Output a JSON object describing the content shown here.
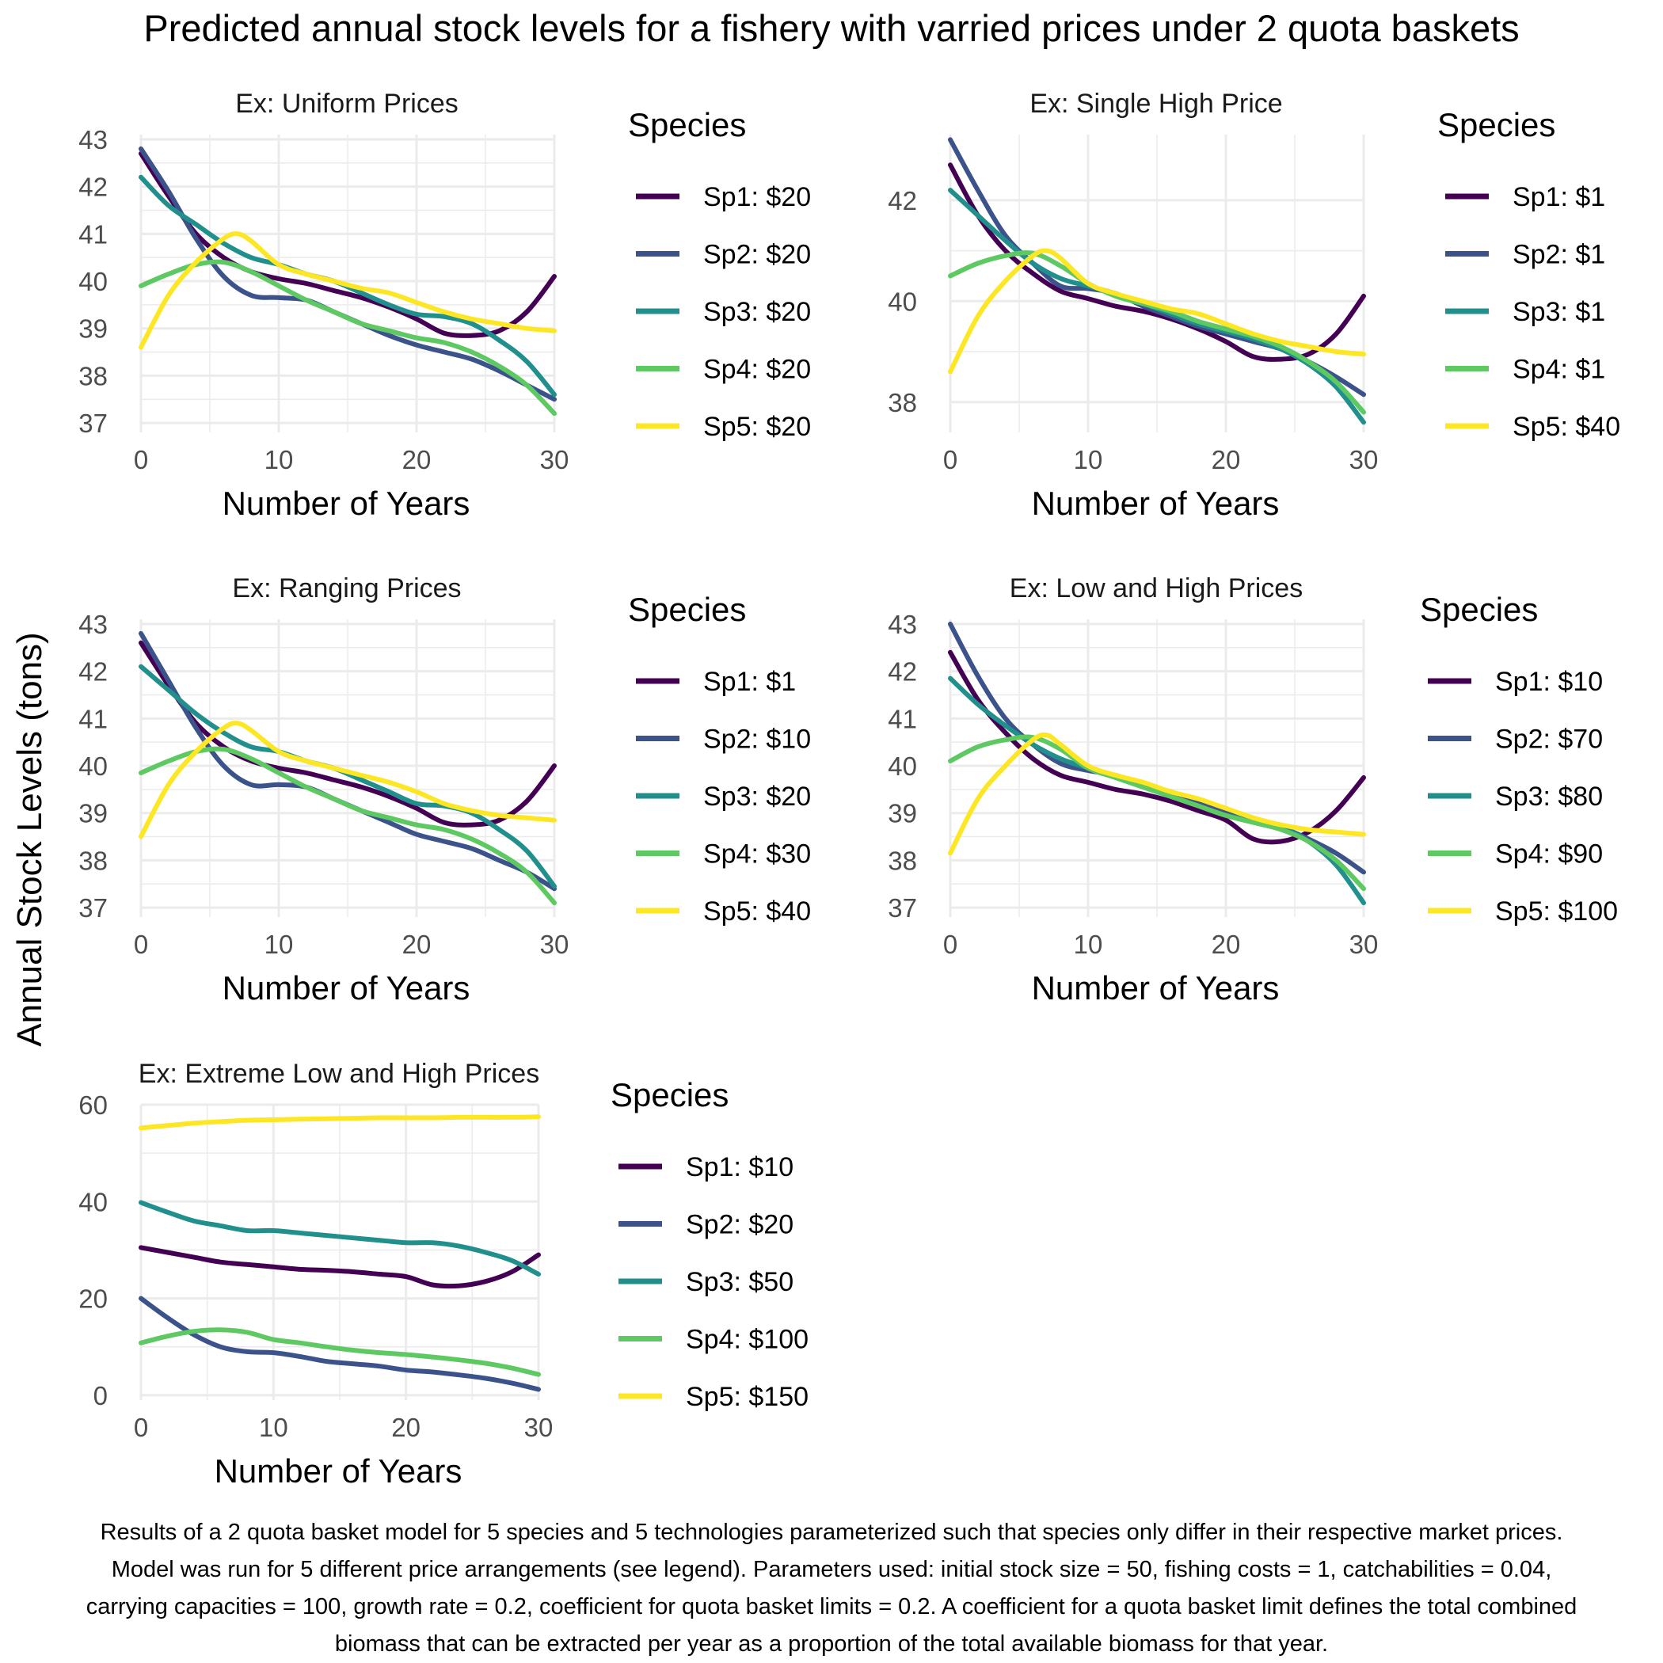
{
  "figure": {
    "title": "Predicted annual stock levels for a fishery with varried prices under 2 quota baskets",
    "y_axis_label": "Annual Stock Levels (tons)",
    "caption": "Results of a 2 quota basket model for 5 species and 5 technologies parameterized such that species only differ in their respective market prices. Model was run for 5 different price arrangements (see legend). Parameters used: initial stock size = 50, fishing costs = 1, catchabilities = 0.04, carrying capacities = 100, growth rate = 0.2, coefficient for quota basket limits = 0.2. A coefficient for a quota basket limit defines the total combined biomass that can be extracted per year as a proportion of the total available biomass for that year."
  },
  "colors": {
    "Sp1": "#440154",
    "Sp2": "#3b528b",
    "Sp3": "#21908c",
    "Sp4": "#5ec962",
    "Sp5": "#fde725",
    "grid": "#ebebeb",
    "text": "#1a1a1a",
    "tick_text": "#4d4d4d"
  },
  "chart_data": [
    {
      "type": "line",
      "title": "Ex: Uniform Prices",
      "xlabel": "Number of Years",
      "ylabel": "",
      "xlim": [
        0,
        30
      ],
      "ylim": [
        36.8,
        43.1
      ],
      "xticks": [
        0,
        10,
        20,
        30
      ],
      "yticks": [
        37,
        38,
        39,
        40,
        41,
        42,
        43
      ],
      "grid": true,
      "legend_title": "Species",
      "legend_position": "right",
      "series": [
        {
          "name": "Sp1: $20",
          "x": [
            0,
            2,
            4,
            6,
            8,
            10,
            12,
            14,
            16,
            18,
            20,
            22,
            24,
            26,
            28,
            30
          ],
          "y": [
            42.7,
            41.8,
            41.0,
            40.5,
            40.2,
            40.05,
            39.95,
            39.8,
            39.65,
            39.45,
            39.2,
            38.9,
            38.85,
            38.95,
            39.35,
            40.1
          ]
        },
        {
          "name": "Sp2: $20",
          "x": [
            0,
            2,
            4,
            6,
            8,
            10,
            12,
            14,
            16,
            18,
            20,
            22,
            24,
            26,
            28,
            30
          ],
          "y": [
            42.8,
            41.9,
            40.9,
            40.1,
            39.7,
            39.65,
            39.6,
            39.35,
            39.1,
            38.85,
            38.65,
            38.5,
            38.35,
            38.1,
            37.8,
            37.5
          ]
        },
        {
          "name": "Sp3: $20",
          "x": [
            0,
            2,
            4,
            6,
            8,
            10,
            12,
            14,
            16,
            18,
            20,
            22,
            24,
            26,
            28,
            30
          ],
          "y": [
            42.2,
            41.6,
            41.2,
            40.8,
            40.5,
            40.35,
            40.15,
            40.0,
            39.75,
            39.5,
            39.3,
            39.25,
            39.1,
            38.75,
            38.3,
            37.6
          ]
        },
        {
          "name": "Sp4: $20",
          "x": [
            0,
            2,
            4,
            6,
            8,
            10,
            12,
            14,
            16,
            18,
            20,
            22,
            24,
            26,
            28,
            30
          ],
          "y": [
            39.9,
            40.15,
            40.35,
            40.4,
            40.2,
            39.9,
            39.6,
            39.35,
            39.1,
            38.95,
            38.8,
            38.7,
            38.5,
            38.2,
            37.8,
            37.2
          ]
        },
        {
          "name": "Sp5: $20",
          "x": [
            0,
            2,
            4,
            6,
            7,
            8,
            10,
            12,
            14,
            16,
            18,
            20,
            22,
            24,
            26,
            28,
            30
          ],
          "y": [
            38.6,
            39.7,
            40.4,
            40.9,
            41.0,
            40.85,
            40.35,
            40.15,
            40.0,
            39.85,
            39.75,
            39.55,
            39.35,
            39.2,
            39.1,
            39.0,
            38.95
          ]
        }
      ]
    },
    {
      "type": "line",
      "title": "Ex: Single High Price",
      "xlabel": "Number of Years",
      "ylabel": "",
      "xlim": [
        0,
        30
      ],
      "ylim": [
        37.4,
        43.3
      ],
      "xticks": [
        0,
        10,
        20,
        30
      ],
      "yticks": [
        38,
        40,
        42
      ],
      "grid": true,
      "legend_title": "Species",
      "legend_position": "right",
      "series": [
        {
          "name": "Sp1: $1",
          "x": [
            0,
            2,
            4,
            6,
            8,
            10,
            12,
            14,
            16,
            18,
            20,
            22,
            24,
            26,
            28,
            30
          ],
          "y": [
            42.7,
            41.7,
            41.0,
            40.55,
            40.2,
            40.05,
            39.9,
            39.8,
            39.65,
            39.45,
            39.2,
            38.9,
            38.85,
            38.95,
            39.35,
            40.1
          ]
        },
        {
          "name": "Sp2: $1",
          "x": [
            0,
            2,
            4,
            6,
            8,
            10,
            12,
            14,
            16,
            18,
            20,
            22,
            24,
            26,
            28,
            30
          ],
          "y": [
            43.2,
            42.2,
            41.3,
            40.75,
            40.3,
            40.25,
            40.15,
            39.9,
            39.7,
            39.5,
            39.35,
            39.2,
            39.05,
            38.8,
            38.5,
            38.15
          ]
        },
        {
          "name": "Sp3: $1",
          "x": [
            0,
            2,
            4,
            6,
            8,
            10,
            12,
            14,
            16,
            18,
            20,
            22,
            24,
            26,
            28,
            30
          ],
          "y": [
            42.2,
            41.7,
            41.2,
            40.75,
            40.45,
            40.3,
            40.15,
            39.95,
            39.75,
            39.55,
            39.4,
            39.25,
            39.05,
            38.75,
            38.3,
            37.6
          ]
        },
        {
          "name": "Sp4: $1",
          "x": [
            0,
            2,
            4,
            6,
            8,
            10,
            12,
            14,
            16,
            18,
            20,
            22,
            24,
            26,
            28,
            30
          ],
          "y": [
            40.5,
            40.75,
            40.9,
            40.95,
            40.7,
            40.35,
            40.1,
            39.95,
            39.8,
            39.6,
            39.45,
            39.3,
            39.1,
            38.8,
            38.4,
            37.8
          ]
        },
        {
          "name": "Sp5: $40",
          "x": [
            0,
            2,
            4,
            6,
            7,
            8,
            10,
            12,
            14,
            16,
            18,
            20,
            22,
            24,
            26,
            28,
            30
          ],
          "y": [
            38.6,
            39.7,
            40.4,
            40.9,
            41.0,
            40.85,
            40.35,
            40.15,
            40.0,
            39.85,
            39.75,
            39.55,
            39.35,
            39.2,
            39.1,
            39.0,
            38.95
          ]
        }
      ]
    },
    {
      "type": "line",
      "title": "Ex: Ranging Prices",
      "xlabel": "Number of Years",
      "ylabel": "",
      "xlim": [
        0,
        30
      ],
      "ylim": [
        36.8,
        43.1
      ],
      "xticks": [
        0,
        10,
        20,
        30
      ],
      "yticks": [
        37,
        38,
        39,
        40,
        41,
        42,
        43
      ],
      "grid": true,
      "legend_title": "Species",
      "legend_position": "right",
      "series": [
        {
          "name": "Sp1: $1",
          "x": [
            0,
            2,
            4,
            6,
            8,
            10,
            12,
            14,
            16,
            18,
            20,
            22,
            24,
            26,
            28,
            30
          ],
          "y": [
            42.6,
            41.7,
            40.9,
            40.4,
            40.1,
            39.95,
            39.85,
            39.7,
            39.55,
            39.35,
            39.1,
            38.8,
            38.75,
            38.85,
            39.25,
            40.0
          ]
        },
        {
          "name": "Sp2: $10",
          "x": [
            0,
            2,
            4,
            6,
            8,
            10,
            12,
            14,
            16,
            18,
            20,
            22,
            24,
            26,
            28,
            30
          ],
          "y": [
            42.8,
            41.8,
            40.8,
            40.0,
            39.6,
            39.6,
            39.55,
            39.3,
            39.05,
            38.8,
            38.55,
            38.4,
            38.25,
            38.0,
            37.75,
            37.4
          ]
        },
        {
          "name": "Sp3: $20",
          "x": [
            0,
            2,
            4,
            6,
            8,
            10,
            12,
            14,
            16,
            18,
            20,
            22,
            24,
            26,
            28,
            30
          ],
          "y": [
            42.1,
            41.6,
            41.1,
            40.7,
            40.4,
            40.3,
            40.1,
            39.95,
            39.7,
            39.45,
            39.2,
            39.15,
            39.0,
            38.65,
            38.2,
            37.45
          ]
        },
        {
          "name": "Sp4: $30",
          "x": [
            0,
            2,
            4,
            6,
            8,
            10,
            12,
            14,
            16,
            18,
            20,
            22,
            24,
            26,
            28,
            30
          ],
          "y": [
            39.85,
            40.1,
            40.3,
            40.35,
            40.15,
            39.85,
            39.55,
            39.3,
            39.05,
            38.9,
            38.75,
            38.65,
            38.45,
            38.15,
            37.75,
            37.1
          ]
        },
        {
          "name": "Sp5: $40",
          "x": [
            0,
            2,
            4,
            6,
            7,
            8,
            10,
            12,
            14,
            16,
            18,
            20,
            22,
            24,
            26,
            28,
            30
          ],
          "y": [
            38.5,
            39.6,
            40.3,
            40.8,
            40.9,
            40.75,
            40.3,
            40.1,
            39.95,
            39.8,
            39.65,
            39.45,
            39.2,
            39.05,
            38.95,
            38.9,
            38.85
          ]
        }
      ]
    },
    {
      "type": "line",
      "title": "Ex: Low and High Prices",
      "xlabel": "Number of Years",
      "ylabel": "",
      "xlim": [
        0,
        30
      ],
      "ylim": [
        36.8,
        43.1
      ],
      "xticks": [
        0,
        10,
        20,
        30
      ],
      "yticks": [
        37,
        38,
        39,
        40,
        41,
        42,
        43
      ],
      "grid": true,
      "legend_title": "Species",
      "legend_position": "right",
      "series": [
        {
          "name": "Sp1: $10",
          "x": [
            0,
            2,
            4,
            6,
            8,
            10,
            12,
            14,
            16,
            18,
            20,
            22,
            24,
            26,
            28,
            30
          ],
          "y": [
            42.4,
            41.4,
            40.7,
            40.15,
            39.8,
            39.65,
            39.5,
            39.4,
            39.25,
            39.05,
            38.85,
            38.45,
            38.4,
            38.6,
            39.05,
            39.75
          ]
        },
        {
          "name": "Sp2: $70",
          "x": [
            0,
            2,
            4,
            6,
            8,
            10,
            12,
            14,
            16,
            18,
            20,
            22,
            24,
            26,
            28,
            30
          ],
          "y": [
            43.0,
            41.9,
            41.0,
            40.45,
            40.05,
            39.9,
            39.8,
            39.6,
            39.45,
            39.25,
            39.0,
            38.85,
            38.7,
            38.45,
            38.15,
            37.75
          ]
        },
        {
          "name": "Sp3: $80",
          "x": [
            0,
            2,
            4,
            6,
            8,
            10,
            12,
            14,
            16,
            18,
            20,
            22,
            24,
            26,
            28,
            30
          ],
          "y": [
            41.85,
            41.3,
            40.85,
            40.45,
            40.15,
            39.95,
            39.75,
            39.55,
            39.35,
            39.15,
            38.95,
            38.85,
            38.7,
            38.4,
            37.9,
            37.1
          ]
        },
        {
          "name": "Sp4: $90",
          "x": [
            0,
            2,
            4,
            6,
            8,
            10,
            12,
            14,
            16,
            18,
            20,
            22,
            24,
            26,
            28,
            30
          ],
          "y": [
            40.1,
            40.4,
            40.55,
            40.6,
            40.35,
            39.95,
            39.75,
            39.55,
            39.35,
            39.15,
            38.95,
            38.8,
            38.65,
            38.4,
            38.0,
            37.4
          ]
        },
        {
          "name": "Sp5: $100",
          "x": [
            0,
            2,
            4,
            6,
            7,
            8,
            10,
            12,
            14,
            16,
            18,
            20,
            22,
            24,
            26,
            28,
            30
          ],
          "y": [
            38.15,
            39.3,
            40.0,
            40.55,
            40.65,
            40.45,
            40.0,
            39.8,
            39.65,
            39.45,
            39.3,
            39.1,
            38.9,
            38.75,
            38.65,
            38.6,
            38.55
          ]
        }
      ]
    },
    {
      "type": "line",
      "title": "Ex: Extreme Low and High Prices",
      "xlabel": "Number of Years",
      "ylabel": "",
      "xlim": [
        0,
        30
      ],
      "ylim": [
        -1,
        60
      ],
      "xticks": [
        0,
        10,
        20,
        30
      ],
      "yticks": [
        0,
        20,
        40,
        60
      ],
      "grid": true,
      "legend_title": "Species",
      "legend_position": "right",
      "series": [
        {
          "name": "Sp1: $10",
          "x": [
            0,
            2,
            4,
            6,
            8,
            10,
            12,
            14,
            16,
            18,
            20,
            22,
            24,
            26,
            28,
            30
          ],
          "y": [
            30.5,
            29.5,
            28.5,
            27.5,
            27.0,
            26.5,
            26.0,
            25.8,
            25.5,
            25.0,
            24.5,
            22.8,
            22.6,
            23.5,
            25.5,
            29.0
          ]
        },
        {
          "name": "Sp2: $20",
          "x": [
            0,
            2,
            4,
            6,
            8,
            10,
            12,
            14,
            16,
            18,
            20,
            22,
            24,
            26,
            28,
            30
          ],
          "y": [
            20.0,
            16.0,
            12.5,
            10.0,
            9.0,
            8.8,
            8.0,
            7.0,
            6.5,
            6.0,
            5.2,
            4.8,
            4.2,
            3.5,
            2.5,
            1.2
          ]
        },
        {
          "name": "Sp3: $50",
          "x": [
            0,
            2,
            4,
            6,
            8,
            10,
            12,
            14,
            16,
            18,
            20,
            22,
            24,
            26,
            28,
            30
          ],
          "y": [
            39.8,
            37.8,
            36.0,
            35.0,
            34.0,
            34.0,
            33.5,
            33.0,
            32.5,
            32.0,
            31.5,
            31.5,
            30.8,
            29.5,
            27.8,
            25.0
          ]
        },
        {
          "name": "Sp4: $100",
          "x": [
            0,
            2,
            4,
            6,
            8,
            10,
            12,
            14,
            16,
            18,
            20,
            22,
            24,
            26,
            28,
            30
          ],
          "y": [
            10.8,
            12.2,
            13.2,
            13.5,
            13.0,
            11.5,
            10.8,
            10.0,
            9.3,
            8.8,
            8.4,
            7.9,
            7.3,
            6.6,
            5.6,
            4.3
          ]
        },
        {
          "name": "Sp5: $150",
          "x": [
            0,
            2,
            4,
            6,
            8,
            10,
            12,
            14,
            16,
            18,
            20,
            22,
            24,
            26,
            28,
            30
          ],
          "y": [
            55.2,
            55.7,
            56.2,
            56.5,
            56.8,
            56.9,
            57.0,
            57.1,
            57.2,
            57.3,
            57.3,
            57.3,
            57.4,
            57.4,
            57.4,
            57.5
          ]
        }
      ]
    }
  ]
}
